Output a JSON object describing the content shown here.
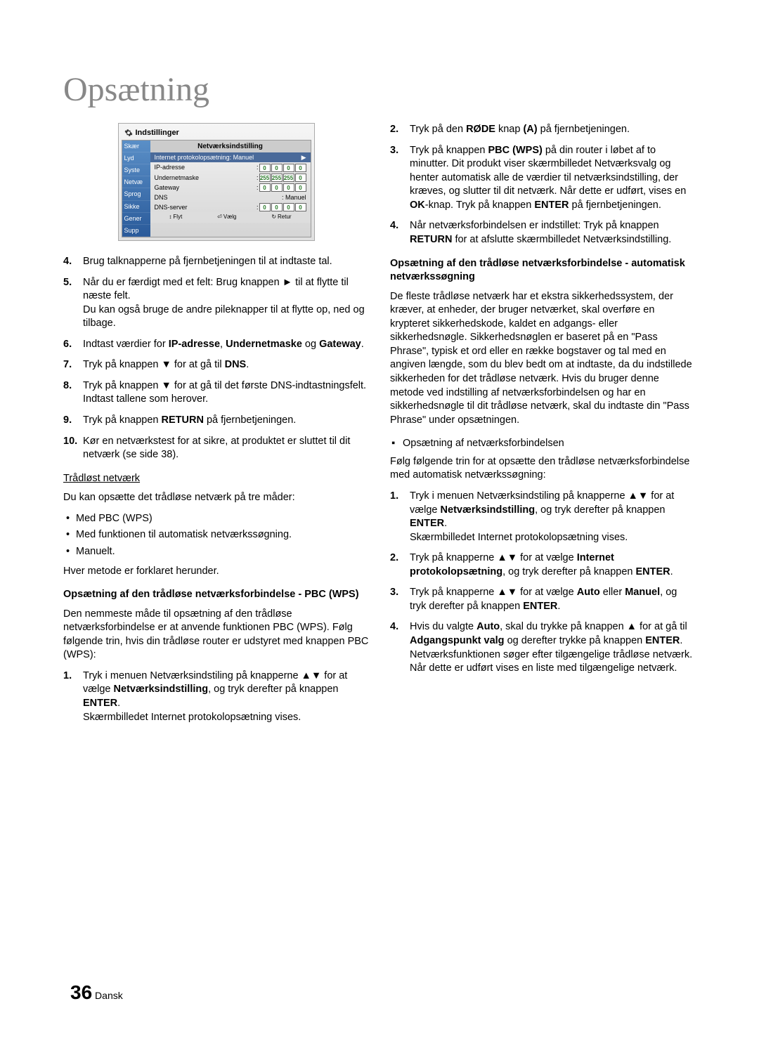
{
  "page_title": "Opsætning",
  "settings_box": {
    "header": "Indstillinger",
    "panel_title": "Netværksindstilling",
    "sidebar_items": [
      "Skær",
      "Lyd",
      "Syste",
      "Netvæ",
      "Sprog",
      "Sikke",
      "Gener",
      "Supp"
    ],
    "rows": [
      {
        "label": "Internet protokolopsætning",
        "value_text": "Manuel",
        "type": "dropdown"
      },
      {
        "label": "IP-adresse",
        "values": [
          "0",
          "0",
          "0",
          "0"
        ],
        "type": "ip"
      },
      {
        "label": "Undernetmaske",
        "values": [
          "255",
          "255",
          "255",
          "0"
        ],
        "type": "ip"
      },
      {
        "label": "Gateway",
        "values": [
          "0",
          "0",
          "0",
          "0"
        ],
        "type": "ip"
      },
      {
        "label": "DNS",
        "value_text": "Manuel",
        "type": "text"
      },
      {
        "label": "DNS-server",
        "values": [
          "0",
          "0",
          "0",
          "0"
        ],
        "type": "ip"
      }
    ],
    "bottom_bar": [
      {
        "icon": "↕",
        "label": "Flyt"
      },
      {
        "icon": "⏎",
        "label": "Vælg"
      },
      {
        "icon": "↻",
        "label": "Retur"
      }
    ]
  },
  "left_list1": [
    "Brug talknapperne på fjernbetjeningen til at indtaste tal.",
    "Når du er færdigt med et felt: Brug knappen ► til at flytte til næste felt.\nDu kan også bruge de andre pileknapper til at flytte op, ned og tilbage.",
    "Indtast værdier for <b>IP-adresse</b>, <b>Undernetmaske</b> og <b>Gateway</b>.",
    "Tryk på knappen ▼ for at gå til <b>DNS</b>.",
    "Tryk på knappen ▼ for at gå til det første DNS-indtastningsfelt. Indtast tallene som herover.",
    "Tryk på knappen <b>RETURN</b> på fjernbetjeningen.",
    "Kør en netværkstest for at sikre, at produktet er sluttet til dit netværk (se side 38)."
  ],
  "wireless_heading": "Trådløst netværk",
  "wireless_intro": "Du kan opsætte det trådløse netværk på tre måder:",
  "wireless_bullets": [
    "Med PBC (WPS)",
    "Med funktionen til automatisk netværkssøgning.",
    "Manuelt."
  ],
  "wireless_note": "Hver metode er forklaret herunder.",
  "pbc_heading": "Opsætning af den trådløse netværksforbindelse - PBC (WPS)",
  "pbc_intro": "Den nemmeste måde til opsætning af den trådløse netværksforbindelse er at anvende funktionen PBC (WPS). Følg følgende trin, hvis din trådløse router er udstyret med knappen PBC (WPS):",
  "pbc_list": [
    "Tryk i menuen Netværksindstiling på knapperne ▲▼ for at vælge <b>Netværksindstilling</b>, og tryk derefter på knappen <b>ENTER</b>.\nSkærmbilledet Internet protokolopsætning vises."
  ],
  "right_list1": [
    "Tryk på den <b>RØDE</b> knap <b>(A)</b> på fjernbetjeningen.",
    "Tryk på knappen <b>PBC (WPS)</b> på din router i løbet af to minutter. Dit produkt viser skærmbilledet Netværksvalg og henter automatisk alle de værdier til netværksindstilling, der kræves, og slutter til dit netværk. Når dette er udført, vises en <b>OK</b>-knap. Tryk på knappen <b>ENTER</b> på fjernbetjeningen.",
    "Når netværksforbindelsen er indstillet: Tryk på knappen <b>RETURN</b> for at afslutte skærmbilledet Netværksindstilling."
  ],
  "auto_heading": "Opsætning af den trådløse netværksforbindelse - automatisk netværkssøgning",
  "auto_para": "De fleste trådløse netværk har et ekstra sikkerhedssystem, der kræver, at enheder, der bruger netværket, skal overføre en krypteret sikkerhedskode, kaldet en adgangs- eller sikkerhedsnøgle. Sikkerhedsnøglen er baseret på en \"Pass Phrase\", typisk et ord eller en række bogstaver og tal med en angiven længde, som du blev bedt om at indtaste, da du indstillede sikkerheden for det trådløse netværk. Hvis du bruger denne metode ved indstilling af netværksforbindelsen og har en sikkerhedsnøgle til dit trådløse netværk, skal du indtaste din \"Pass Phrase\" under opsætningen.",
  "setup_sub": "Opsætning af netværksforbindelsen",
  "setup_intro": "Følg følgende trin for at opsætte den trådløse netværksforbindelse med automatisk netværkssøgning:",
  "setup_list": [
    "Tryk i menuen Netværksindstiling på knapperne ▲▼ for at vælge <b>Netværksindstilling</b>, og tryk derefter på knappen <b>ENTER</b>.\nSkærmbilledet Internet protokolopsætning vises.",
    "Tryk på knapperne ▲▼ for at vælge <b>Internet protokolopsætning</b>, og tryk derefter på knappen <b>ENTER</b>.",
    "Tryk på knapperne ▲▼ for at vælge <b>Auto</b> eller <b>Manuel</b>, og tryk derefter på knappen <b>ENTER</b>.",
    "Hvis du valgte <b>Auto</b>, skal du trykke på knappen ▲ for at gå til <b>Adgangspunkt valg</b> og derefter trykke på knappen <b>ENTER</b>. Netværksfunktionen søger efter tilgængelige trådløse netværk.\nNår dette er udført vises en liste med tilgængelige netværk."
  ],
  "footer": {
    "page_num": "36",
    "lang": "Dansk"
  }
}
